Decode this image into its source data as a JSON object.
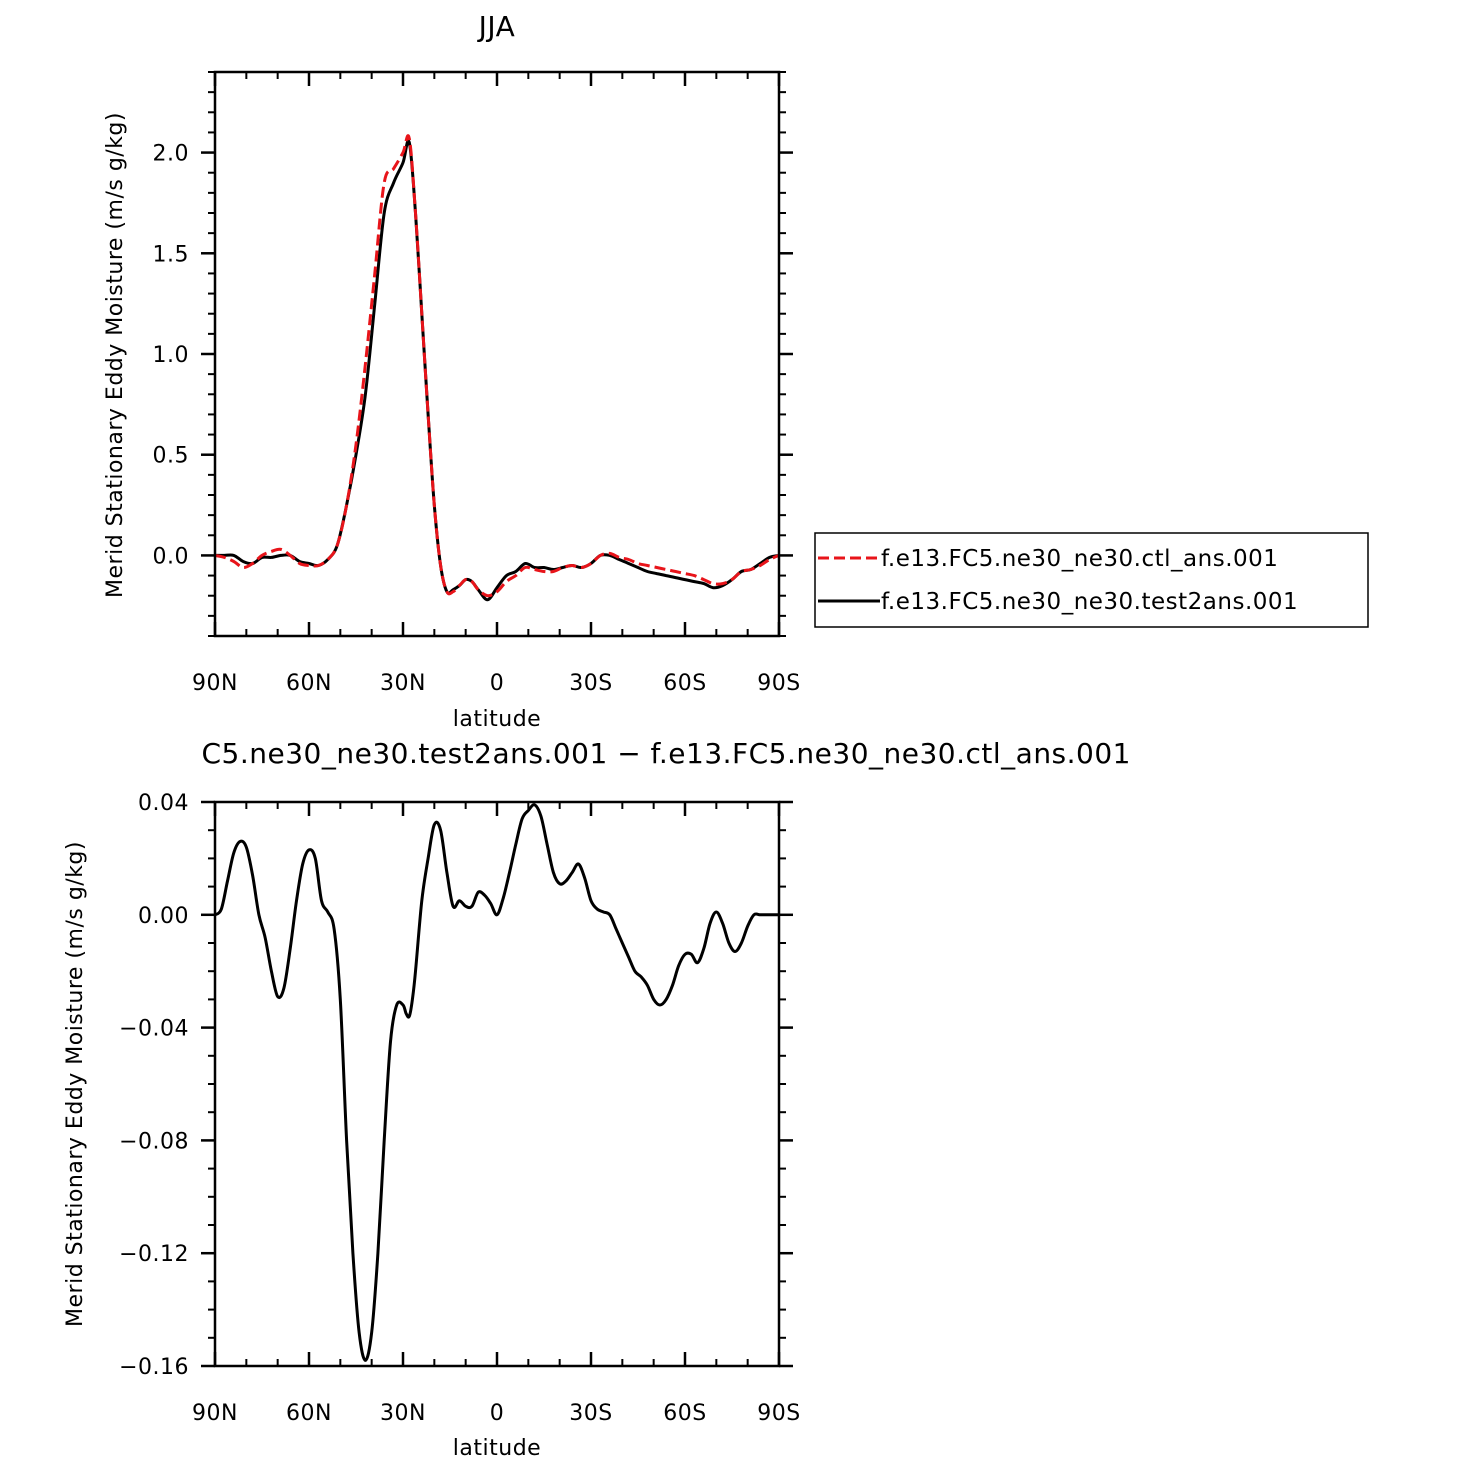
{
  "chart_data": [
    {
      "type": "line",
      "title": "JJA",
      "xlabel": "latitude",
      "ylabel": "Merid Stationary Eddy Moisture (m/s g/kg)",
      "x_ticks": [
        "90N",
        "60N",
        "30N",
        "0",
        "30S",
        "60S",
        "90S"
      ],
      "x_tick_values": [
        90,
        60,
        30,
        0,
        -30,
        -60,
        -90
      ],
      "y_ticks": [
        "0.0",
        "0.5",
        "1.0",
        "1.5",
        "2.0"
      ],
      "y_tick_values": [
        0,
        0.5,
        1.0,
        1.5,
        2.0
      ],
      "xlim": [
        90,
        -90
      ],
      "ylim": [
        -0.4,
        2.4
      ],
      "legend_position": "right",
      "series": [
        {
          "name": "f.e13.FC5.ne30_ne30.ctl_ans.001",
          "color": "#e8141a",
          "dash": true,
          "x": [
            90,
            87,
            84,
            81,
            78,
            75,
            72,
            69,
            66,
            63,
            60,
            57,
            54,
            51,
            48,
            45,
            42,
            39,
            36,
            33,
            30,
            28,
            26,
            24,
            22,
            20,
            18,
            16,
            14,
            12,
            10,
            8,
            6,
            3,
            0,
            -3,
            -6,
            -9,
            -12,
            -15,
            -18,
            -21,
            -24,
            -27,
            -30,
            -33,
            -36,
            -39,
            -42,
            -45,
            -48,
            -51,
            -54,
            -57,
            -60,
            -63,
            -66,
            -69,
            -72,
            -75,
            -78,
            -81,
            -84,
            -87,
            -90
          ],
          "y": [
            0.0,
            -0.01,
            -0.03,
            -0.06,
            -0.04,
            0.0,
            0.02,
            0.03,
            0.0,
            -0.04,
            -0.05,
            -0.05,
            -0.02,
            0.05,
            0.25,
            0.55,
            0.95,
            1.4,
            1.85,
            1.92,
            2.0,
            2.07,
            1.7,
            1.2,
            0.7,
            0.25,
            -0.05,
            -0.18,
            -0.18,
            -0.15,
            -0.12,
            -0.13,
            -0.17,
            -0.2,
            -0.18,
            -0.13,
            -0.1,
            -0.06,
            -0.07,
            -0.08,
            -0.08,
            -0.06,
            -0.05,
            -0.06,
            -0.04,
            0.0,
            0.01,
            -0.01,
            -0.02,
            -0.04,
            -0.05,
            -0.06,
            -0.07,
            -0.08,
            -0.09,
            -0.1,
            -0.12,
            -0.14,
            -0.14,
            -0.12,
            -0.08,
            -0.07,
            -0.05,
            -0.02,
            0.0
          ]
        },
        {
          "name": "f.e13.FC5.ne30_ne30.test2ans.001",
          "color": "#000000",
          "dash": false,
          "x": [
            90,
            87,
            84,
            81,
            78,
            75,
            72,
            69,
            66,
            63,
            60,
            57,
            54,
            51,
            48,
            45,
            42,
            39,
            36,
            33,
            30,
            28,
            26,
            24,
            22,
            20,
            18,
            16,
            14,
            12,
            10,
            8,
            6,
            3,
            0,
            -3,
            -6,
            -9,
            -12,
            -15,
            -18,
            -21,
            -24,
            -27,
            -30,
            -33,
            -36,
            -39,
            -42,
            -45,
            -48,
            -51,
            -54,
            -57,
            -60,
            -63,
            -66,
            -69,
            -72,
            -75,
            -78,
            -81,
            -84,
            -87,
            -90
          ],
          "y": [
            0.0,
            0.0,
            0.0,
            -0.03,
            -0.04,
            -0.01,
            -0.01,
            0.0,
            0.0,
            -0.03,
            -0.04,
            -0.05,
            -0.02,
            0.05,
            0.25,
            0.5,
            0.8,
            1.25,
            1.7,
            1.85,
            1.95,
            2.05,
            1.7,
            1.2,
            0.7,
            0.25,
            -0.05,
            -0.18,
            -0.17,
            -0.15,
            -0.12,
            -0.13,
            -0.17,
            -0.22,
            -0.16,
            -0.1,
            -0.08,
            -0.04,
            -0.06,
            -0.06,
            -0.07,
            -0.06,
            -0.05,
            -0.06,
            -0.04,
            0.0,
            0.0,
            -0.02,
            -0.04,
            -0.06,
            -0.08,
            -0.09,
            -0.1,
            -0.11,
            -0.12,
            -0.13,
            -0.14,
            -0.16,
            -0.15,
            -0.12,
            -0.08,
            -0.07,
            -0.04,
            -0.01,
            0.0
          ]
        }
      ]
    },
    {
      "type": "line",
      "title": "f.e13.FC5.ne30_ne30.test2ans.001  -  f.e13.FC5.ne30_ne30.ctl_ans.001",
      "title_visible": "C5.ne30_ne30.test2ans.001  −  f.e13.FC5.ne30_ne30.ctl_ans.001",
      "xlabel": "latitude",
      "ylabel": "Merid Stationary Eddy Moisture (m/s g/kg)",
      "x_ticks": [
        "90N",
        "60N",
        "30N",
        "0",
        "30S",
        "60S",
        "90S"
      ],
      "x_tick_values": [
        90,
        60,
        30,
        0,
        -30,
        -60,
        -90
      ],
      "y_ticks": [
        "0.04",
        "0.00",
        "−0.04",
        "−0.08",
        "−0.12",
        "−0.16"
      ],
      "y_tick_values": [
        0.04,
        0.0,
        -0.04,
        -0.08,
        -0.12,
        -0.16
      ],
      "xlim": [
        90,
        -90
      ],
      "ylim": [
        -0.16,
        0.04
      ],
      "series": [
        {
          "color": "#000000",
          "dash": false,
          "x": [
            90,
            88,
            86,
            84,
            82,
            80,
            78,
            76,
            74,
            72,
            70,
            68,
            66,
            64,
            62,
            60,
            58,
            56,
            54,
            52,
            50,
            48,
            46,
            44,
            42,
            40,
            38,
            36,
            34,
            32,
            30,
            29,
            28,
            27,
            26,
            24,
            22,
            20,
            18,
            16,
            14,
            12,
            10,
            8,
            6,
            4,
            2,
            0,
            -2,
            -4,
            -6,
            -8,
            -10,
            -12,
            -14,
            -16,
            -18,
            -20,
            -22,
            -24,
            -26,
            -28,
            -30,
            -32,
            -34,
            -36,
            -38,
            -40,
            -42,
            -44,
            -46,
            -48,
            -50,
            -52,
            -54,
            -56,
            -58,
            -60,
            -62,
            -64,
            -66,
            -68,
            -70,
            -72,
            -74,
            -76,
            -78,
            -80,
            -82,
            -84,
            -86,
            -88,
            -90
          ],
          "y": [
            0.0,
            0.002,
            0.012,
            0.022,
            0.026,
            0.024,
            0.014,
            0.0,
            -0.008,
            -0.02,
            -0.029,
            -0.026,
            -0.012,
            0.005,
            0.018,
            0.023,
            0.02,
            0.005,
            0.001,
            -0.005,
            -0.03,
            -0.08,
            -0.12,
            -0.148,
            -0.158,
            -0.148,
            -0.12,
            -0.08,
            -0.045,
            -0.032,
            -0.032,
            -0.035,
            -0.036,
            -0.03,
            -0.02,
            0.005,
            0.02,
            0.032,
            0.03,
            0.015,
            0.003,
            0.005,
            0.003,
            0.003,
            0.008,
            0.007,
            0.004,
            0.0,
            0.006,
            0.015,
            0.025,
            0.034,
            0.037,
            0.039,
            0.035,
            0.025,
            0.015,
            0.011,
            0.012,
            0.015,
            0.018,
            0.013,
            0.005,
            0.002,
            0.001,
            0.0,
            -0.005,
            -0.01,
            -0.015,
            -0.02,
            -0.022,
            -0.025,
            -0.03,
            -0.032,
            -0.03,
            -0.025,
            -0.018,
            -0.014,
            -0.014,
            -0.017,
            -0.012,
            -0.003,
            0.001,
            -0.003,
            -0.01,
            -0.013,
            -0.01,
            -0.004,
            0.0,
            0.0,
            0.0,
            0.0,
            0.0
          ]
        }
      ]
    }
  ]
}
